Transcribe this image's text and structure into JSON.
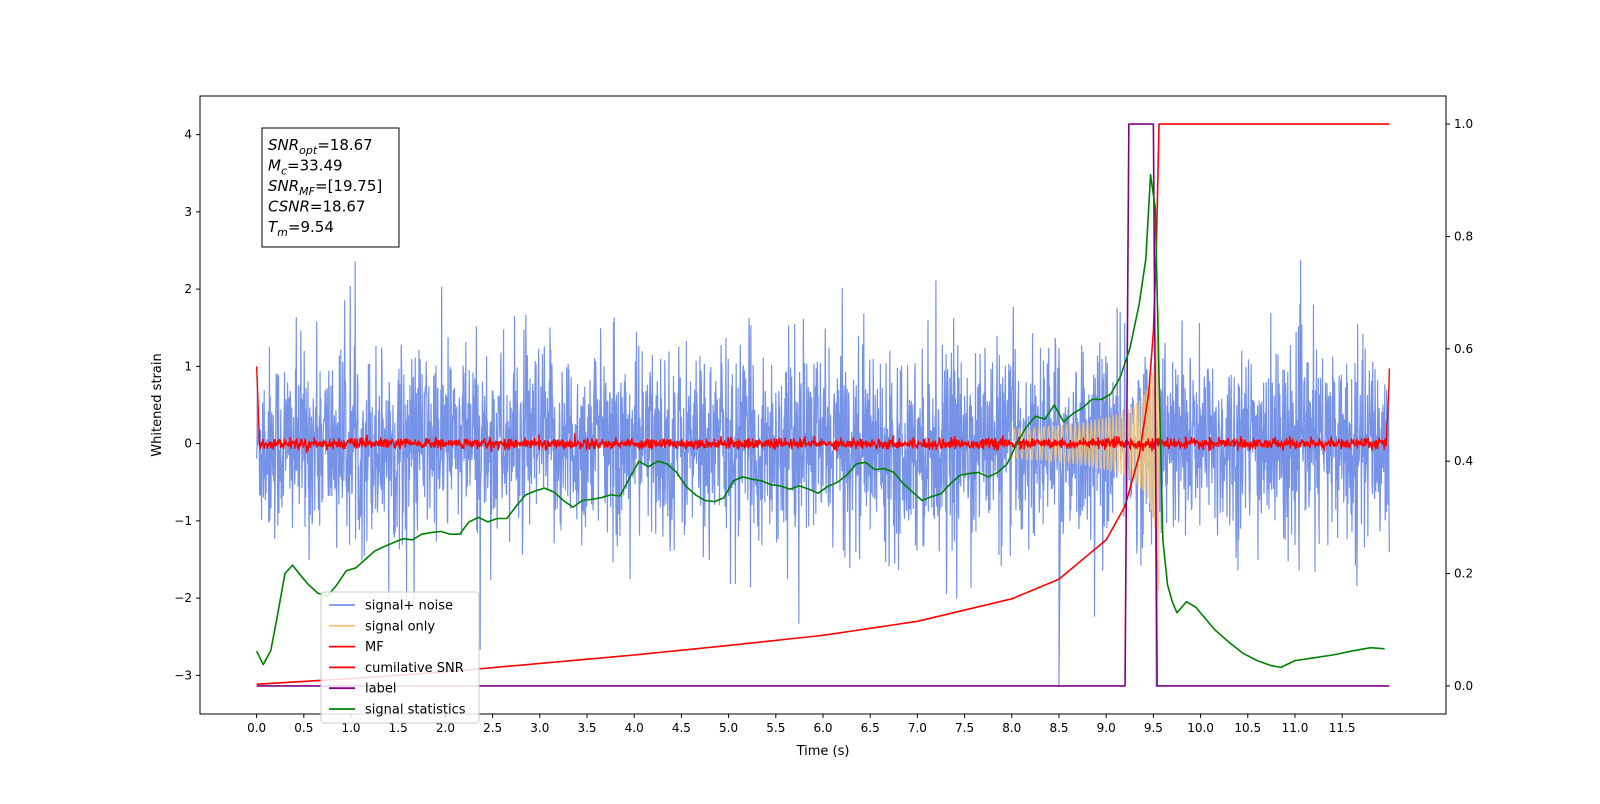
{
  "chart_data": {
    "type": "line",
    "xlabel": "Time (s)",
    "ylabel": "Whitened strain",
    "xlim": [
      -0.6,
      12.6
    ],
    "ylim": [
      -3.5,
      4.5
    ],
    "ylim_right": [
      -0.05,
      1.05
    ],
    "x_ticks": [
      0.0,
      0.5,
      1.0,
      1.5,
      2.0,
      2.5,
      3.0,
      3.5,
      4.0,
      4.5,
      5.0,
      5.5,
      6.0,
      6.5,
      7.0,
      7.5,
      8.0,
      8.5,
      9.0,
      9.5,
      10.0,
      10.5,
      11.0,
      11.5
    ],
    "x_tick_labels": [
      "0.0",
      "0.5",
      "1.0",
      "1.5",
      "2.0",
      "2.5",
      "3.0",
      "3.5",
      "4.0",
      "4.5",
      "5.0",
      "5.5",
      "6.0",
      "6.5",
      "7.0",
      "7.5",
      "8.0",
      "8.5",
      "9.0",
      "9.5",
      "10.0",
      "10.5",
      "11.0",
      "11.5"
    ],
    "y_ticks": [
      -3,
      -2,
      -1,
      0,
      1,
      2,
      3,
      4
    ],
    "y_tick_labels": [
      "−3",
      "−2",
      "−1",
      "0",
      "1",
      "2",
      "3",
      "4"
    ],
    "y_right_ticks": [
      0.0,
      0.2,
      0.4,
      0.6,
      0.8,
      1.0
    ],
    "y_right_tick_labels": [
      "0.0",
      "0.2",
      "0.4",
      "0.6",
      "0.8",
      "1.0"
    ],
    "grid": false,
    "legend_position": "lower-left",
    "annotation": {
      "position": "top-left",
      "lines": [
        {
          "base": "SNR",
          "sub": "opt",
          "value": "=18.67"
        },
        {
          "base": "M",
          "sub": "c",
          "value": "=33.49"
        },
        {
          "base": "SNR",
          "sub": "MF",
          "value": "=[19.75]"
        },
        {
          "base": "CSNR",
          "sub": "",
          "value": "=18.67"
        },
        {
          "base": "T",
          "sub": "m",
          "value": "=9.54"
        }
      ]
    },
    "series": [
      {
        "name": "signal+ noise",
        "color": "#7793e8",
        "axis": "left",
        "kind": "noisy-band",
        "x_range": [
          0.0,
          12.0
        ],
        "typical_range": [
          -1.0,
          1.0
        ],
        "peak_range": [
          -2.9,
          2.7
        ]
      },
      {
        "name": "signal only",
        "color": "#f5c77a",
        "axis": "left",
        "kind": "chirp",
        "x_range": [
          8.0,
          9.56
        ],
        "amplitude_at_end": 2.5
      },
      {
        "name": "MF",
        "color": "#ff0000",
        "axis": "left",
        "kind": "noisy-band",
        "x_range": [
          0.0,
          12.0
        ],
        "typical_range": [
          -0.08,
          0.08
        ],
        "edge_values": [
          1.0,
          0.95
        ]
      },
      {
        "name": "cumilative SNR",
        "color": "#ff0000",
        "axis": "right",
        "x": [
          0.0,
          1.0,
          2.0,
          3.0,
          4.0,
          5.0,
          6.0,
          7.0,
          8.0,
          8.5,
          9.0,
          9.2,
          9.35,
          9.45,
          9.5,
          9.53,
          9.56,
          12.0
        ],
        "values": [
          0.003,
          0.013,
          0.025,
          0.04,
          0.055,
          0.072,
          0.09,
          0.115,
          0.155,
          0.19,
          0.26,
          0.32,
          0.41,
          0.52,
          0.63,
          0.77,
          1.0,
          1.0
        ]
      },
      {
        "name": "label",
        "color": "#800080",
        "axis": "right",
        "x": [
          0.0,
          9.2,
          9.24,
          9.5,
          9.54,
          12.0
        ],
        "values": [
          0.0,
          0.0,
          1.0,
          1.0,
          0.0,
          0.0
        ]
      },
      {
        "name": "signal statistics",
        "color": "#008000",
        "axis": "right",
        "x": [
          0.0,
          0.07,
          0.15,
          0.22,
          0.3,
          0.38,
          0.45,
          0.55,
          0.65,
          0.75,
          0.85,
          0.95,
          1.05,
          1.15,
          1.25,
          1.35,
          1.45,
          1.55,
          1.65,
          1.75,
          1.85,
          1.95,
          2.05,
          2.15,
          2.25,
          2.35,
          2.45,
          2.55,
          2.65,
          2.75,
          2.85,
          2.95,
          3.05,
          3.15,
          3.25,
          3.35,
          3.45,
          3.55,
          3.65,
          3.75,
          3.85,
          3.95,
          4.05,
          4.15,
          4.25,
          4.35,
          4.45,
          4.55,
          4.65,
          4.75,
          4.85,
          4.95,
          5.05,
          5.15,
          5.25,
          5.35,
          5.45,
          5.55,
          5.65,
          5.75,
          5.85,
          5.95,
          6.05,
          6.15,
          6.25,
          6.35,
          6.45,
          6.55,
          6.65,
          6.75,
          6.85,
          6.95,
          7.05,
          7.15,
          7.25,
          7.35,
          7.45,
          7.55,
          7.65,
          7.75,
          7.85,
          7.95,
          8.05,
          8.15,
          8.25,
          8.35,
          8.45,
          8.55,
          8.65,
          8.75,
          8.85,
          8.95,
          9.05,
          9.15,
          9.25,
          9.35,
          9.42,
          9.47,
          9.52,
          9.56,
          9.6,
          9.65,
          9.7,
          9.75,
          9.8,
          9.85,
          9.95,
          10.05,
          10.15,
          10.3,
          10.45,
          10.6,
          10.75,
          10.85,
          11.0,
          11.2,
          11.4,
          11.6,
          11.8,
          11.95
        ],
        "values": [
          0.062,
          0.038,
          0.063,
          0.125,
          0.2,
          0.215,
          0.2,
          0.18,
          0.165,
          0.16,
          0.18,
          0.205,
          0.21,
          0.225,
          0.24,
          0.248,
          0.255,
          0.262,
          0.26,
          0.27,
          0.273,
          0.275,
          0.27,
          0.27,
          0.292,
          0.3,
          0.292,
          0.298,
          0.298,
          0.32,
          0.34,
          0.347,
          0.352,
          0.345,
          0.33,
          0.318,
          0.33,
          0.332,
          0.335,
          0.34,
          0.338,
          0.37,
          0.4,
          0.39,
          0.4,
          0.395,
          0.38,
          0.355,
          0.34,
          0.33,
          0.328,
          0.335,
          0.365,
          0.372,
          0.368,
          0.365,
          0.358,
          0.356,
          0.35,
          0.356,
          0.35,
          0.343,
          0.355,
          0.362,
          0.375,
          0.395,
          0.398,
          0.385,
          0.387,
          0.38,
          0.36,
          0.345,
          0.33,
          0.337,
          0.342,
          0.36,
          0.375,
          0.378,
          0.38,
          0.372,
          0.38,
          0.395,
          0.43,
          0.46,
          0.48,
          0.475,
          0.5,
          0.47,
          0.485,
          0.495,
          0.51,
          0.51,
          0.52,
          0.55,
          0.6,
          0.68,
          0.76,
          0.91,
          0.85,
          0.55,
          0.26,
          0.18,
          0.15,
          0.13,
          0.14,
          0.15,
          0.14,
          0.12,
          0.1,
          0.078,
          0.058,
          0.045,
          0.036,
          0.033,
          0.045,
          0.05,
          0.055,
          0.062,
          0.068,
          0.066
        ]
      }
    ]
  }
}
